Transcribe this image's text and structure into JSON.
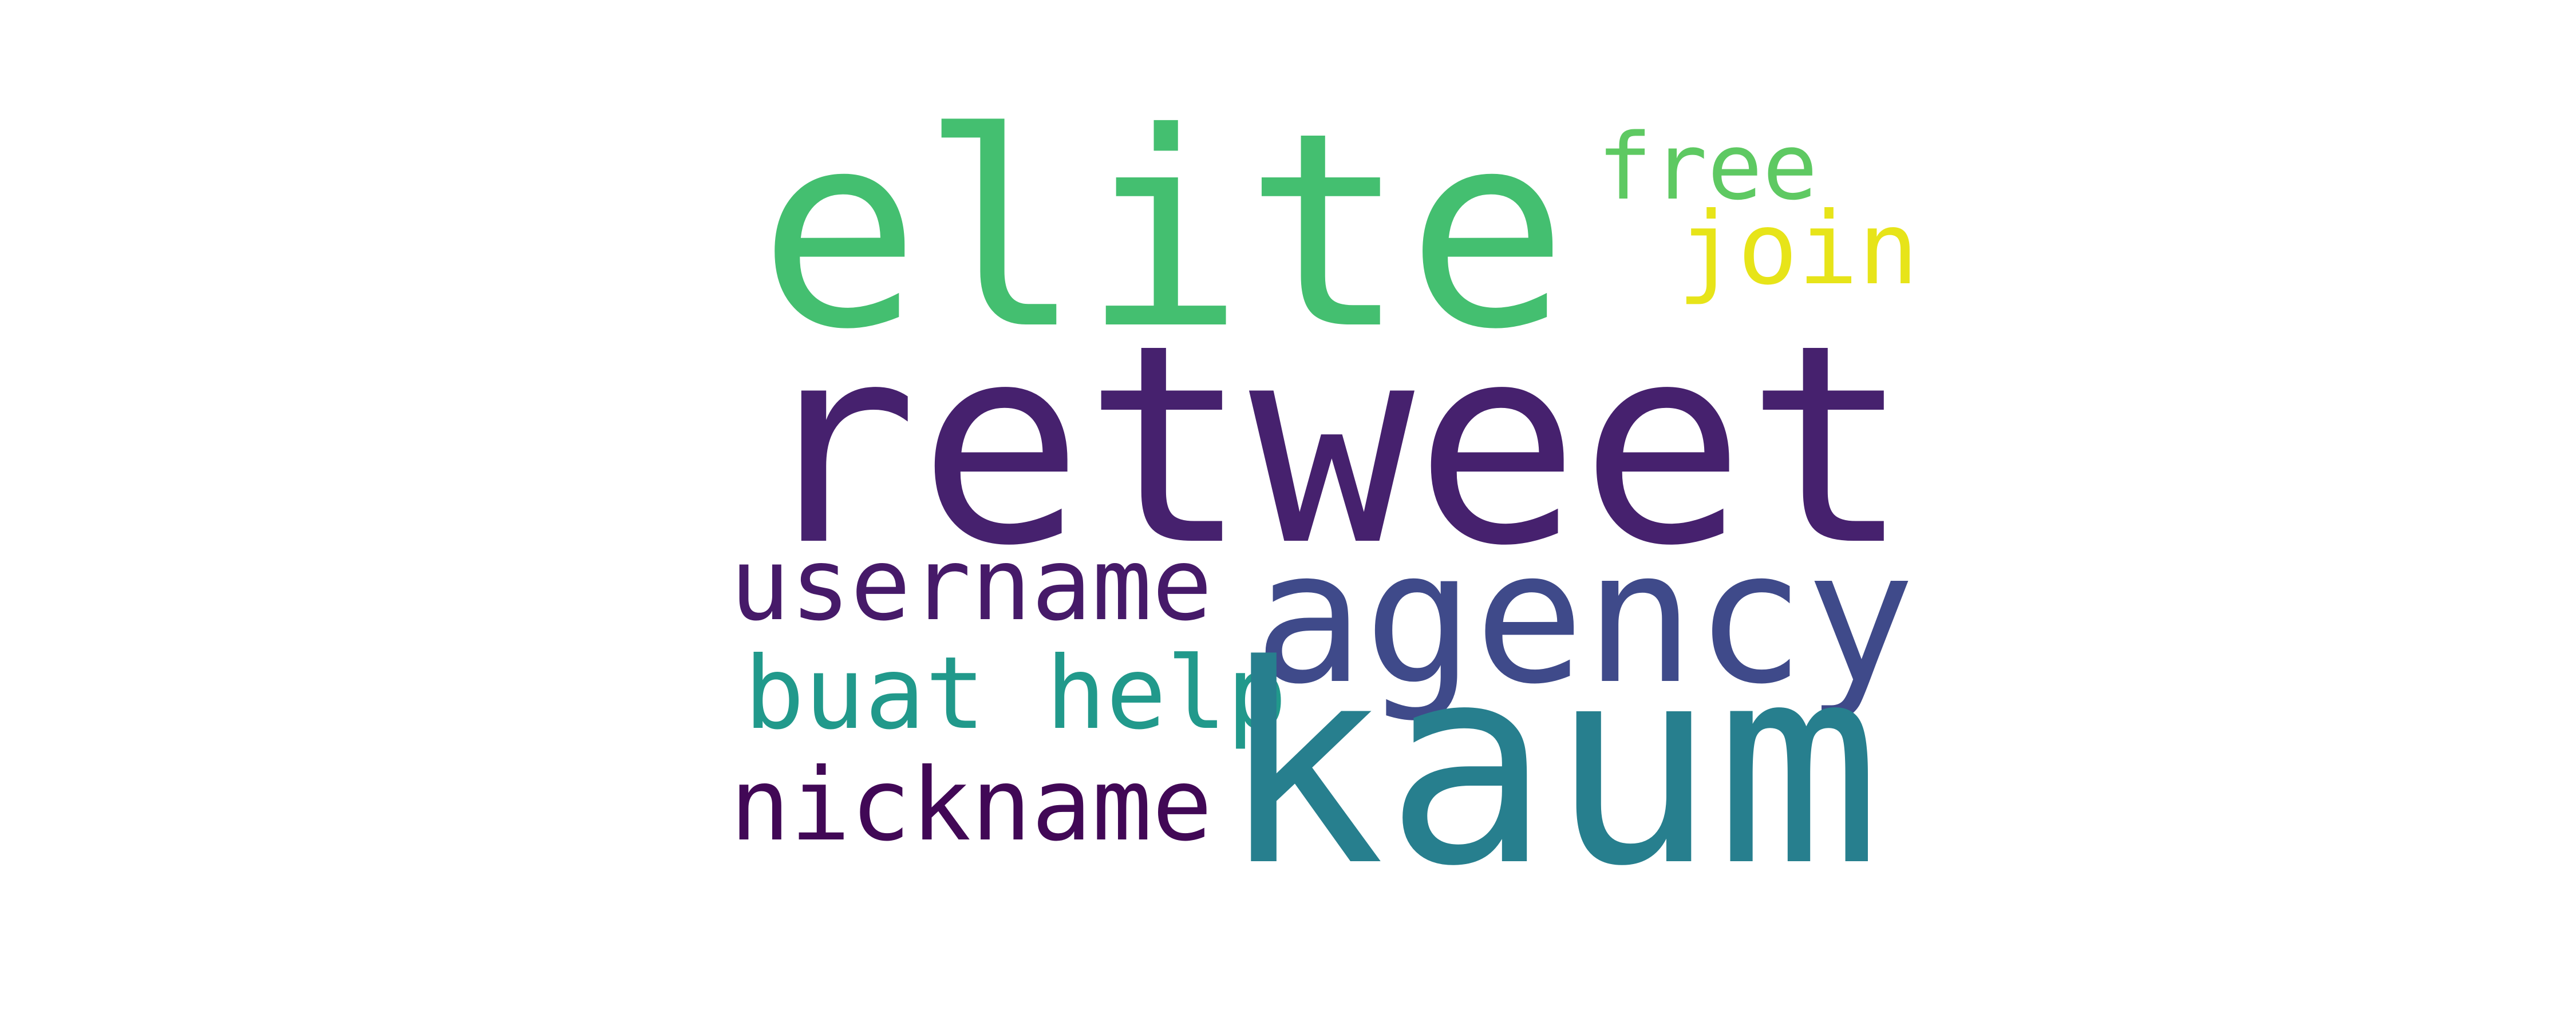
{
  "words": {
    "elite": {
      "text": "elite",
      "color": "#44bf70"
    },
    "free": {
      "text": "free",
      "color": "#5ec962"
    },
    "join": {
      "text": "join",
      "color": "#e7e419"
    },
    "retweet": {
      "text": "retweet",
      "color": "#46216e"
    },
    "username": {
      "text": "username",
      "color": "#461a69"
    },
    "agency": {
      "text": "agency",
      "color": "#3f4a8a"
    },
    "buat_help": {
      "text": "buat help",
      "color": "#21998b"
    },
    "nickname": {
      "text": "nickname",
      "color": "#410856"
    },
    "kaum": {
      "text": "kaum",
      "color": "#277f8e"
    }
  }
}
